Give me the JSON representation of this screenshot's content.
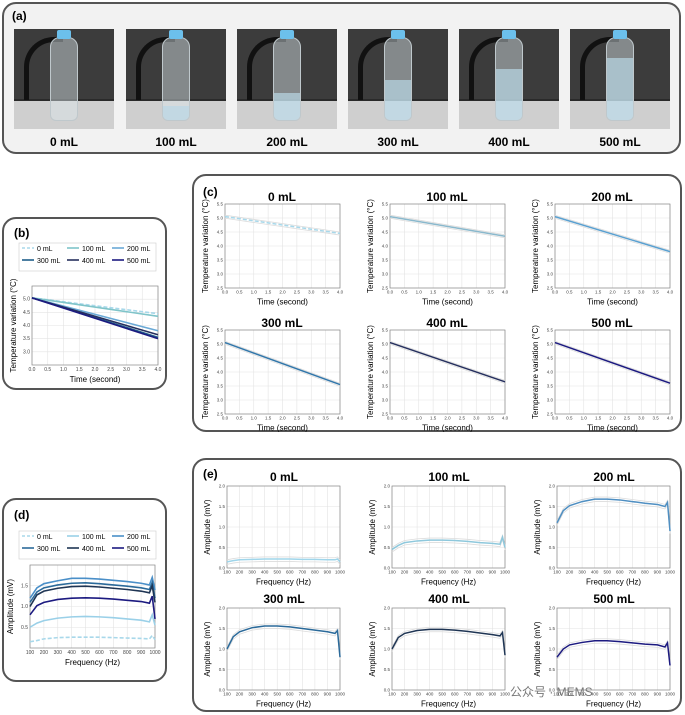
{
  "panels": {
    "a": "(a)",
    "b": "(b)",
    "c": "(c)",
    "d": "(d)",
    "e": "(e)"
  },
  "photos": {
    "volumes": [
      "0 mL",
      "100 mL",
      "200 mL",
      "300 mL",
      "400 mL",
      "500 mL"
    ],
    "fill_fractions": [
      0,
      0.18,
      0.34,
      0.5,
      0.64,
      0.78
    ]
  },
  "watermark": "公众号 · MEMS",
  "chart_data": [
    {
      "id": "b",
      "type": "line",
      "xlabel": "Time (second)",
      "ylabel": "Temperature variation (°C)",
      "xlim": [
        0,
        4
      ],
      "ylim": [
        2.5,
        5.5
      ],
      "xticks": [
        "0.0",
        "0.5",
        "1.0",
        "1.5",
        "2.0",
        "2.5",
        "3.0",
        "3.5",
        "4.0"
      ],
      "yticks": [
        "3.0",
        "3.5",
        "4.0",
        "4.5",
        "5.0"
      ],
      "legend": "top",
      "x": [
        0,
        4
      ],
      "series": [
        {
          "name": "0 mL",
          "color": "#a8d8ea",
          "dash": true,
          "values": [
            5.05,
            4.45
          ]
        },
        {
          "name": "100 mL",
          "color": "#7fc4c9",
          "values": [
            5.05,
            4.35
          ]
        },
        {
          "name": "200 mL",
          "color": "#6aa9d6",
          "values": [
            5.05,
            3.8
          ]
        },
        {
          "name": "300 mL",
          "color": "#1f5f8b",
          "values": [
            5.05,
            3.55
          ]
        },
        {
          "name": "400 mL",
          "color": "#26305e",
          "values": [
            5.05,
            3.65
          ]
        },
        {
          "name": "500 mL",
          "color": "#1c1a80",
          "values": [
            5.05,
            3.5
          ]
        }
      ]
    },
    {
      "id": "c",
      "type": "line",
      "xlabel": "Time (second)",
      "ylabel": "Temperature variation (°C)",
      "xlim": [
        0,
        4
      ],
      "ylim": [
        2.5,
        5.5
      ],
      "xticks": [
        "0.0",
        "0.5",
        "1.0",
        "1.5",
        "2.0",
        "2.5",
        "3.0",
        "3.5",
        "4.0"
      ],
      "yticks": [
        "2.5",
        "3.0",
        "3.5",
        "4.0",
        "4.5",
        "5.0",
        "5.5"
      ],
      "x": [
        0,
        4
      ],
      "subplots": [
        {
          "title": "0 mL",
          "color": "#a8d8ea",
          "dash": true,
          "values": [
            5.05,
            4.45
          ]
        },
        {
          "title": "100 mL",
          "color": "#8ab8cc",
          "values": [
            5.05,
            4.35
          ]
        },
        {
          "title": "200 mL",
          "color": "#5aa0d0",
          "values": [
            5.05,
            3.8
          ]
        },
        {
          "title": "300 mL",
          "color": "#3377aa",
          "values": [
            5.05,
            3.55
          ]
        },
        {
          "title": "400 mL",
          "color": "#26305e",
          "values": [
            5.05,
            3.65
          ]
        },
        {
          "title": "500 mL",
          "color": "#1c1a80",
          "values": [
            5.05,
            3.6
          ]
        }
      ]
    },
    {
      "id": "d",
      "type": "line",
      "xlabel": "Frequency (Hz)",
      "ylabel": "Amplitude (mV)",
      "xlim": [
        100,
        1000
      ],
      "ylim": [
        0,
        2
      ],
      "xticks": [
        "100",
        "200",
        "300",
        "400",
        "500",
        "600",
        "700",
        "800",
        "900",
        "1000"
      ],
      "yticks": [
        "0.5",
        "1.0",
        "1.5"
      ],
      "legend": "top",
      "x": [
        100,
        150,
        200,
        300,
        400,
        500,
        600,
        700,
        800,
        900,
        960,
        980,
        1000
      ],
      "series": [
        {
          "name": "0 mL",
          "color": "#a8d8ea",
          "dash": true,
          "values": [
            0.15,
            0.18,
            0.22,
            0.25,
            0.26,
            0.26,
            0.26,
            0.25,
            0.24,
            0.23,
            0.22,
            0.3,
            0.2
          ]
        },
        {
          "name": "100 mL",
          "color": "#9ad0e8",
          "values": [
            0.5,
            0.6,
            0.66,
            0.72,
            0.75,
            0.76,
            0.75,
            0.73,
            0.7,
            0.67,
            0.63,
            0.8,
            0.55
          ]
        },
        {
          "name": "200 mL",
          "color": "#4a8fc8",
          "values": [
            1.2,
            1.45,
            1.55,
            1.62,
            1.68,
            1.68,
            1.66,
            1.63,
            1.6,
            1.56,
            1.52,
            1.7,
            1.4
          ]
        },
        {
          "name": "300 mL",
          "color": "#2b6a9a",
          "values": [
            1.1,
            1.35,
            1.45,
            1.52,
            1.56,
            1.57,
            1.55,
            1.52,
            1.49,
            1.45,
            1.41,
            1.58,
            1.2
          ]
        },
        {
          "name": "400 mL",
          "color": "#1f3554",
          "values": [
            1.0,
            1.28,
            1.37,
            1.44,
            1.48,
            1.49,
            1.47,
            1.44,
            1.41,
            1.37,
            1.33,
            1.5,
            1.1
          ]
        },
        {
          "name": "500 mL",
          "color": "#1c1a80",
          "values": [
            0.8,
            1.02,
            1.1,
            1.17,
            1.2,
            1.21,
            1.2,
            1.18,
            1.15,
            1.12,
            1.08,
            1.25,
            0.7
          ]
        }
      ]
    },
    {
      "id": "e",
      "type": "line",
      "xlabel": "Frequency (Hz)",
      "ylabel": "Amplitude (mV)",
      "xlim": [
        100,
        1000
      ],
      "ylim": [
        0,
        2
      ],
      "xticks": [
        "100",
        "200",
        "300",
        "400",
        "500",
        "600",
        "700",
        "800",
        "900",
        "1000"
      ],
      "yticks": [
        "0.0",
        "0.5",
        "1.0",
        "1.5",
        "2.0"
      ],
      "x": [
        100,
        150,
        200,
        300,
        400,
        500,
        600,
        700,
        800,
        900,
        960,
        980,
        1000
      ],
      "subplots": [
        {
          "title": "0 mL",
          "color": "#9fd5ea",
          "values": [
            0.15,
            0.18,
            0.2,
            0.21,
            0.22,
            0.22,
            0.22,
            0.21,
            0.21,
            0.2,
            0.2,
            0.22,
            0.15
          ]
        },
        {
          "title": "100 mL",
          "color": "#8ec8dc",
          "values": [
            0.45,
            0.55,
            0.62,
            0.66,
            0.68,
            0.68,
            0.67,
            0.65,
            0.62,
            0.6,
            0.58,
            0.75,
            0.5
          ]
        },
        {
          "title": "200 mL",
          "color": "#4f8fc2",
          "values": [
            1.1,
            1.4,
            1.52,
            1.62,
            1.68,
            1.68,
            1.66,
            1.62,
            1.58,
            1.55,
            1.5,
            1.6,
            0.9
          ]
        },
        {
          "title": "300 mL",
          "color": "#2b6a9a",
          "values": [
            1.0,
            1.3,
            1.42,
            1.52,
            1.56,
            1.56,
            1.54,
            1.5,
            1.46,
            1.42,
            1.38,
            1.45,
            0.8
          ]
        },
        {
          "title": "400 mL",
          "color": "#1f3554",
          "values": [
            1.0,
            1.28,
            1.38,
            1.45,
            1.48,
            1.48,
            1.46,
            1.43,
            1.39,
            1.35,
            1.32,
            1.4,
            0.85
          ]
        },
        {
          "title": "500 mL",
          "color": "#1c1a80",
          "values": [
            0.8,
            1.0,
            1.1,
            1.16,
            1.2,
            1.2,
            1.18,
            1.15,
            1.12,
            1.1,
            1.05,
            1.15,
            0.6
          ]
        }
      ]
    }
  ]
}
